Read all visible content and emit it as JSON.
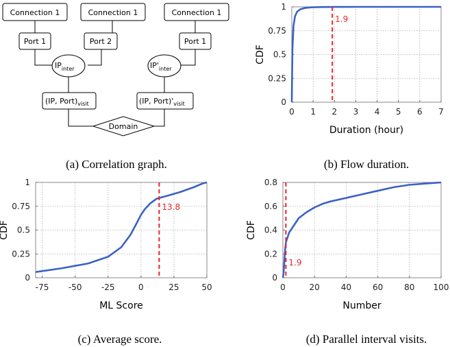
{
  "diagram": {
    "connections": [
      "Connection 1",
      "Connection 1",
      "Connection 1"
    ],
    "ports": [
      "Port 1",
      "Port 2",
      "Port 1"
    ],
    "ip_left": {
      "main": "IP",
      "sub": "inter"
    },
    "ip_right": {
      "main": "IP'",
      "sub": "inter"
    },
    "visit_left": {
      "main": "(IP, Port)",
      "sub": "visit"
    },
    "visit_right": {
      "main": "(IP, Port)'",
      "sub": "visit"
    },
    "domain": "Domain",
    "caption": "(a) Correlation graph."
  },
  "chart_data": [
    {
      "id": "b",
      "type": "line",
      "caption": "(b) Flow duration.",
      "xlabel": "Duration (hour)",
      "ylabel": "CDF",
      "xlim": [
        0,
        7
      ],
      "ylim": [
        0,
        1
      ],
      "xticks": [
        "0",
        "1",
        "2",
        "3",
        "4",
        "5",
        "6",
        "7"
      ],
      "yticks": [
        "0",
        "0.25",
        "0.5",
        "0.75",
        "1"
      ],
      "grid": true,
      "line_color": "#3a62c4",
      "marker": {
        "x": 1.9,
        "label": "1.9",
        "color": "#e8262a"
      },
      "series": [
        {
          "x": [
            0,
            0.03,
            0.08,
            0.15,
            0.25,
            0.4,
            0.6,
            0.9,
            1.3,
            2,
            3,
            7
          ],
          "y": [
            0,
            0.55,
            0.8,
            0.9,
            0.95,
            0.975,
            0.988,
            0.995,
            0.998,
            0.999,
            1,
            1
          ]
        }
      ]
    },
    {
      "id": "c",
      "type": "line",
      "caption": "(c) Average score.",
      "xlabel": "ML Score",
      "ylabel": "CDF",
      "xlim": [
        -80,
        50
      ],
      "ylim": [
        0,
        1
      ],
      "xticks": [
        "-75",
        "-50",
        "-25",
        "0",
        "25",
        "50"
      ],
      "xtick_values": [
        -75,
        -50,
        -25,
        0,
        25,
        50
      ],
      "yticks": [
        "0",
        "0.25",
        "0.5",
        "0.75",
        "1"
      ],
      "grid": true,
      "line_color": "#3a62c4",
      "marker": {
        "x": 13.8,
        "label": "13.8",
        "color": "#e8262a"
      },
      "series": [
        {
          "x": [
            -80,
            -60,
            -40,
            -25,
            -15,
            -8,
            -3,
            0,
            3,
            7,
            12,
            20,
            30,
            40,
            47,
            50
          ],
          "y": [
            0.06,
            0.1,
            0.15,
            0.22,
            0.32,
            0.45,
            0.58,
            0.66,
            0.72,
            0.78,
            0.83,
            0.86,
            0.9,
            0.95,
            0.99,
            1
          ]
        }
      ]
    },
    {
      "id": "d",
      "type": "line",
      "caption": "(d) Parallel interval visits.",
      "xlabel": "Number",
      "ylabel": "CDF",
      "xlim": [
        0,
        100
      ],
      "ylim": [
        0,
        0.8
      ],
      "xticks": [
        "0",
        "20",
        "40",
        "60",
        "80",
        "100"
      ],
      "xtick_values": [
        0,
        20,
        40,
        60,
        80,
        100
      ],
      "yticks": [
        "0",
        "0.2",
        "0.4",
        "0.6",
        "0.8"
      ],
      "ytick_values": [
        0,
        0.2,
        0.4,
        0.6,
        0.8
      ],
      "grid": true,
      "line_color": "#3a62c4",
      "marker": {
        "x": 1.9,
        "label": "1.9",
        "color": "#e8262a"
      },
      "series": [
        {
          "x": [
            0,
            0.5,
            1,
            1.5,
            2,
            3,
            4,
            6,
            8,
            10,
            15,
            20,
            25,
            30,
            40,
            50,
            60,
            70,
            80,
            90,
            100
          ],
          "y": [
            0,
            0.05,
            0.15,
            0.25,
            0.3,
            0.34,
            0.38,
            0.42,
            0.46,
            0.5,
            0.55,
            0.59,
            0.62,
            0.64,
            0.67,
            0.7,
            0.73,
            0.76,
            0.78,
            0.79,
            0.8
          ]
        }
      ]
    }
  ]
}
